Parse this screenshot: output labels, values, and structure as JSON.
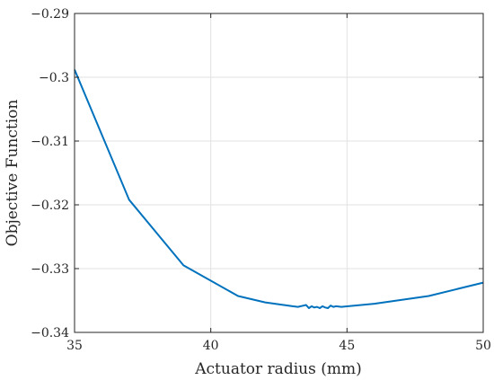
{
  "chart_data": {
    "type": "line",
    "title": "",
    "xlabel": "Actuator radius (mm)",
    "ylabel": "Objective Function",
    "xlim": [
      35,
      50
    ],
    "ylim": [
      -0.34,
      -0.29
    ],
    "x_ticks": [
      35,
      40,
      45,
      50
    ],
    "x_tick_labels": [
      "35",
      "40",
      "45",
      "50"
    ],
    "y_ticks": [
      -0.29,
      -0.3,
      -0.31,
      -0.32,
      -0.33,
      -0.34
    ],
    "y_tick_labels": [
      "−0.29",
      "−0.3",
      "−0.31",
      "−0.32",
      "−0.33",
      "−0.34"
    ],
    "grid": true,
    "colors": {
      "line": "#0072BD",
      "axis": "#262626",
      "grid": "#e2e2e2"
    },
    "series": [
      {
        "x": [
          35,
          37,
          39,
          41,
          42,
          43,
          43.2,
          43.4,
          43.5,
          43.6,
          43.7,
          43.8,
          43.9,
          44.0,
          44.1,
          44.2,
          44.3,
          44.4,
          44.5,
          44.6,
          44.8,
          46,
          48,
          50
        ],
        "y": [
          -0.2988,
          -0.3192,
          -0.3295,
          -0.3343,
          -0.3353,
          -0.3359,
          -0.336,
          -0.3358,
          -0.3357,
          -0.3362,
          -0.3359,
          -0.3361,
          -0.336,
          -0.3362,
          -0.3359,
          -0.3361,
          -0.3362,
          -0.3358,
          -0.336,
          -0.3359,
          -0.336,
          -0.3355,
          -0.3343,
          -0.3322
        ]
      }
    ]
  }
}
